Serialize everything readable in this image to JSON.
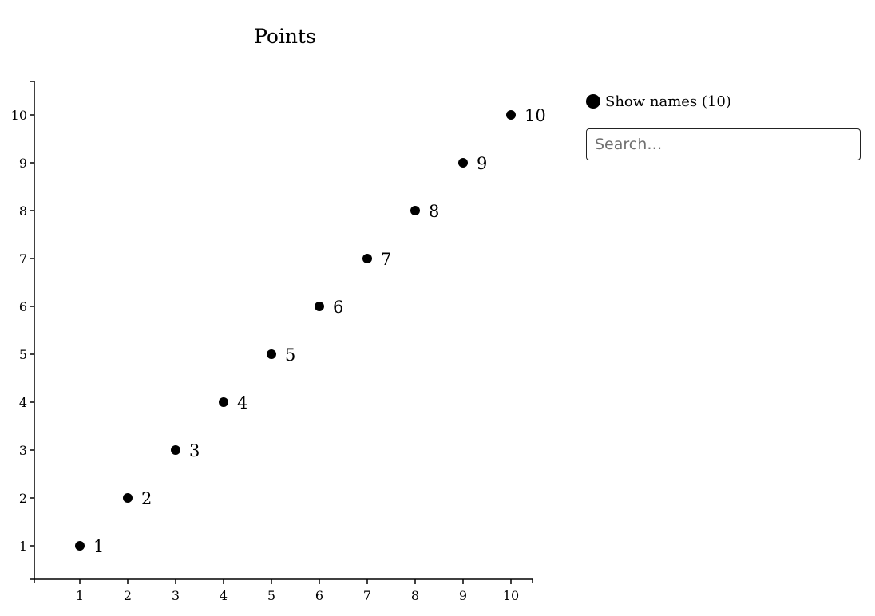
{
  "panel": {
    "legend_label": "Show names (10)",
    "search_placeholder": "Search…"
  },
  "chart_data": {
    "type": "scatter",
    "title": "Points",
    "xlabel": "",
    "ylabel": "",
    "xlim": [
      0.05,
      10.45
    ],
    "ylim": [
      0.3,
      10.7
    ],
    "x_ticks": [
      1,
      2,
      3,
      4,
      5,
      6,
      7,
      8,
      9,
      10
    ],
    "y_ticks": [
      1,
      2,
      3,
      4,
      5,
      6,
      7,
      8,
      9,
      10
    ],
    "grid": false,
    "legend": "right",
    "marker_color": "#000000",
    "points": [
      {
        "x": 1,
        "y": 1,
        "label": "1"
      },
      {
        "x": 2,
        "y": 2,
        "label": "2"
      },
      {
        "x": 3,
        "y": 3,
        "label": "3"
      },
      {
        "x": 4,
        "y": 4,
        "label": "4"
      },
      {
        "x": 5,
        "y": 5,
        "label": "5"
      },
      {
        "x": 6,
        "y": 6,
        "label": "6"
      },
      {
        "x": 7,
        "y": 7,
        "label": "7"
      },
      {
        "x": 8,
        "y": 8,
        "label": "8"
      },
      {
        "x": 9,
        "y": 9,
        "label": "9"
      },
      {
        "x": 10,
        "y": 10,
        "label": "10"
      }
    ]
  }
}
